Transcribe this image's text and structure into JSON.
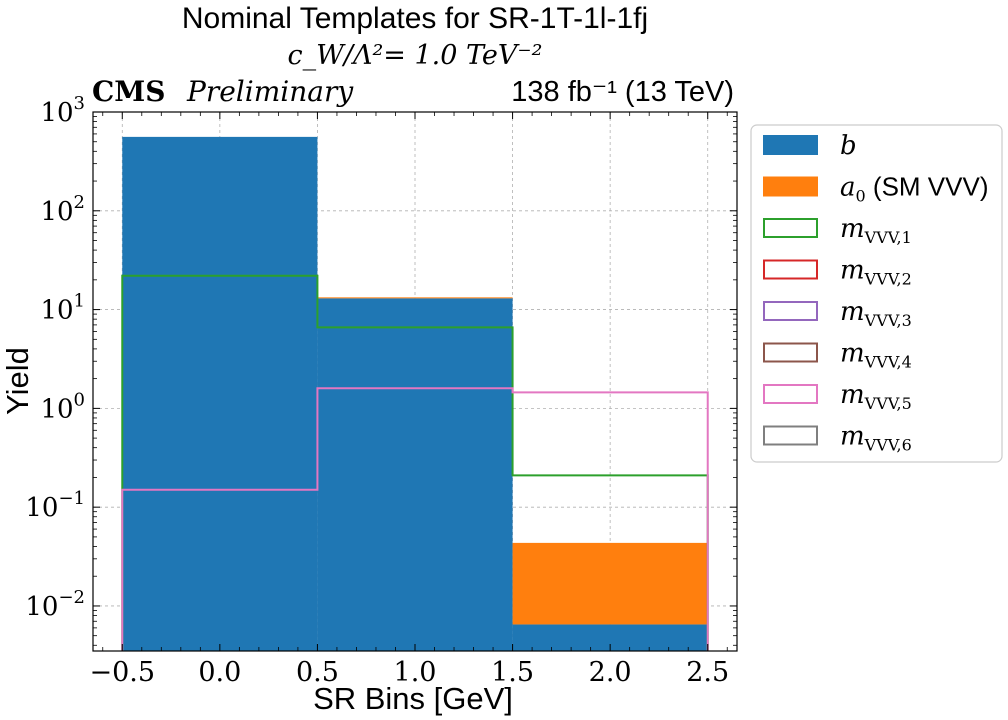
{
  "chart_data": {
    "type": "histogram",
    "title_lines": [
      "Nominal Templates for SR-1T-1l-1fj",
      "c_W/Λ²= 1.0 TeV⁻²"
    ],
    "experiment_label": "CMS",
    "experiment_sublabel": "Preliminary",
    "lumi_label": "138 fb⁻¹ (13 TeV)",
    "xlabel": "SR Bins [GeV]",
    "ylabel": "Yield",
    "xlim": [
      -0.65,
      2.65
    ],
    "ylim": [
      0.0035,
      1000
    ],
    "yscale": "log",
    "grid": true,
    "legend_position": "outside-right",
    "x_ticks": [
      -0.5,
      0.0,
      0.5,
      1.0,
      1.5,
      2.0,
      2.5
    ],
    "x_tick_labels": [
      "−0.5",
      "0.0",
      "0.5",
      "1.0",
      "1.5",
      "2.0",
      "2.5"
    ],
    "y_ticks": [
      0.01,
      0.1,
      1,
      10,
      100,
      1000
    ],
    "y_tick_labels": [
      {
        "base": "10",
        "exp": "−2"
      },
      {
        "base": "10",
        "exp": "−1"
      },
      {
        "base": "10",
        "exp": "0"
      },
      {
        "base": "10",
        "exp": "1"
      },
      {
        "base": "10",
        "exp": "2"
      },
      {
        "base": "10",
        "exp": "3"
      }
    ],
    "bin_edges": [
      -0.5,
      0.5,
      1.5,
      2.5
    ],
    "stacked": [
      {
        "name": "b",
        "color": "#1f77b4",
        "values": [
          560,
          13.0,
          0.0065
        ]
      },
      {
        "name": "a₀ (SM VVV)",
        "color": "#ff7f0e",
        "values": [
          0.0,
          0.3,
          0.037
        ]
      }
    ],
    "step_series": [
      {
        "name": "m_VVV,1",
        "color": "#2ca02c",
        "values": [
          22,
          6.6,
          0.21
        ]
      },
      {
        "name": "m_VVV,2",
        "color": "#d62728",
        "values": [
          null,
          null,
          null
        ]
      },
      {
        "name": "m_VVV,3",
        "color": "#9467bd",
        "values": [
          null,
          null,
          null
        ]
      },
      {
        "name": "m_VVV,4",
        "color": "#8c564b",
        "values": [
          null,
          null,
          null
        ]
      },
      {
        "name": "m_VVV,5",
        "color": "#e377c2",
        "values": [
          0.15,
          1.6,
          1.45
        ]
      },
      {
        "name": "m_VVV,6",
        "color": "#7f7f7f",
        "values": [
          null,
          null,
          null
        ]
      }
    ],
    "legend": [
      {
        "main": "b",
        "sub": "",
        "extra": "",
        "kind": "fill",
        "color": "#1f77b4"
      },
      {
        "main": "a",
        "sub": "0",
        "extra": " (SM VVV)",
        "kind": "fill",
        "color": "#ff7f0e"
      },
      {
        "main": "m",
        "sub": "VVV,1",
        "extra": "",
        "kind": "step",
        "color": "#2ca02c"
      },
      {
        "main": "m",
        "sub": "VVV,2",
        "extra": "",
        "kind": "step",
        "color": "#d62728"
      },
      {
        "main": "m",
        "sub": "VVV,3",
        "extra": "",
        "kind": "step",
        "color": "#9467bd"
      },
      {
        "main": "m",
        "sub": "VVV,4",
        "extra": "",
        "kind": "step",
        "color": "#8c564b"
      },
      {
        "main": "m",
        "sub": "VVV,5",
        "extra": "",
        "kind": "step",
        "color": "#e377c2"
      },
      {
        "main": "m",
        "sub": "VVV,6",
        "extra": "",
        "kind": "step",
        "color": "#7f7f7f"
      }
    ]
  }
}
